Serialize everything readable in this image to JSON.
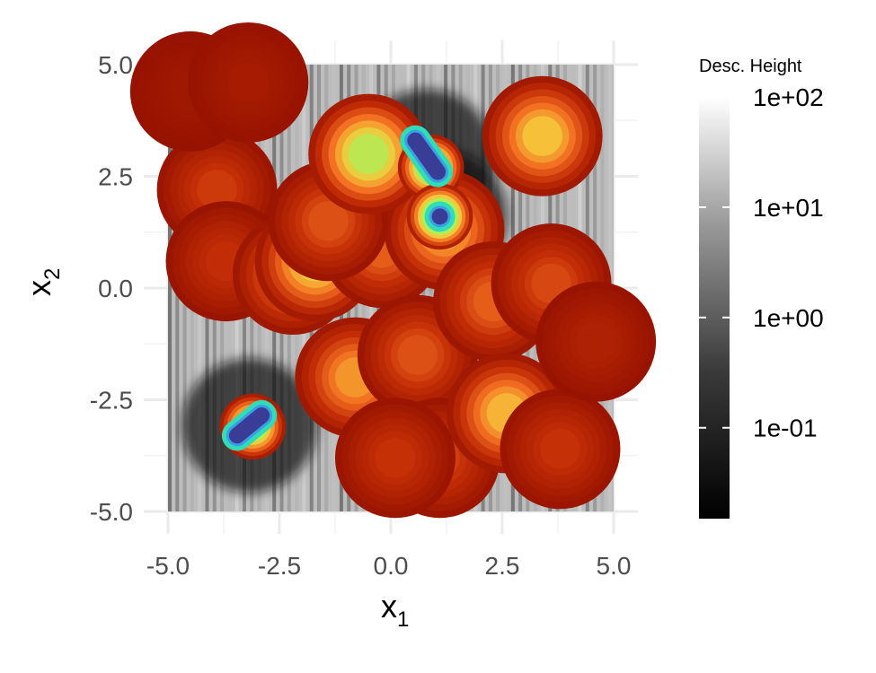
{
  "chart_data": {
    "type": "scatter",
    "title": "",
    "xlabel": "x",
    "xlabel_sub": "1",
    "ylabel": "x",
    "ylabel_sub": "2",
    "xlim": [
      -5,
      5
    ],
    "ylim": [
      -5,
      5
    ],
    "x_ticks": [
      -5,
      -2.5,
      0,
      2.5,
      5
    ],
    "y_ticks": [
      -5,
      -2.5,
      0,
      2.5,
      5
    ],
    "x_tick_labels": [
      "-5.0",
      "-2.5",
      "0.0",
      "2.5",
      "5.0"
    ],
    "y_tick_labels": [
      "-5.0",
      "-2.5",
      "0.0",
      "2.5",
      "5.0"
    ],
    "grid": true,
    "background": "grayscale descent-height field (log scale, 1e-02 to 1e+02)",
    "legend": {
      "title": "Desc. Height",
      "scale": "log",
      "placement": "right",
      "range": [
        0.015,
        100
      ],
      "ticks": [
        100,
        10,
        1,
        0.1
      ],
      "tick_labels": [
        "1e+02",
        "1e+01",
        "1e+00",
        "1e-01"
      ],
      "colors": [
        "#000000",
        "#ffffff"
      ]
    },
    "point_color_scale": [
      "#3a3d96",
      "#3d9be8",
      "#2fe0b5",
      "#a5f55a",
      "#f7c53a",
      "#f26d21",
      "#c32d06",
      "#961200"
    ],
    "clusters": [
      {
        "x": -3.9,
        "y": 2.2,
        "level": 0.83
      },
      {
        "x": -3.7,
        "y": 0.6,
        "level": 0.86
      },
      {
        "x": -4.5,
        "y": 4.4,
        "level": 0.97
      },
      {
        "x": -3.2,
        "y": 4.6,
        "level": 0.95
      },
      {
        "x": -2.2,
        "y": 0.3,
        "level": 0.7
      },
      {
        "x": -1.7,
        "y": 0.6,
        "level": 0.55
      },
      {
        "x": -0.8,
        "y": -2.0,
        "level": 0.65
      },
      {
        "x": -0.2,
        "y": 0.9,
        "level": 0.75
      },
      {
        "x": 0.6,
        "y": -1.5,
        "level": 0.78
      },
      {
        "x": 1.2,
        "y": 1.3,
        "level": 0.62
      },
      {
        "x": 1.1,
        "y": -3.8,
        "level": 0.82
      },
      {
        "x": 0.1,
        "y": -3.8,
        "level": 0.85
      },
      {
        "x": 2.3,
        "y": -0.3,
        "level": 0.75
      },
      {
        "x": 3.4,
        "y": 3.4,
        "level": 0.58
      },
      {
        "x": 3.6,
        "y": 0.1,
        "level": 0.8
      },
      {
        "x": 2.6,
        "y": -2.8,
        "level": 0.6
      },
      {
        "x": 3.8,
        "y": -3.6,
        "level": 0.85
      },
      {
        "x": 4.6,
        "y": -1.2,
        "level": 0.92
      },
      {
        "x": -1.4,
        "y": 1.5,
        "level": 0.78
      },
      {
        "x": -0.5,
        "y": 3.0,
        "level": 0.47
      },
      {
        "x": 0.9,
        "y": 2.7,
        "level": 0.3
      },
      {
        "x": -3.1,
        "y": -3.1,
        "level": 0.35
      },
      {
        "x": 1.1,
        "y": 1.6,
        "level": 0.2
      }
    ],
    "minima": [
      {
        "x1": 0.55,
        "y1": 3.3,
        "x2": 1.05,
        "y2": 2.6
      },
      {
        "x1": -3.45,
        "y1": -3.3,
        "x2": -2.9,
        "y2": -2.85
      },
      {
        "x1": 1.1,
        "y1": 1.6,
        "x2": 1.1,
        "y2": 1.6
      }
    ]
  }
}
